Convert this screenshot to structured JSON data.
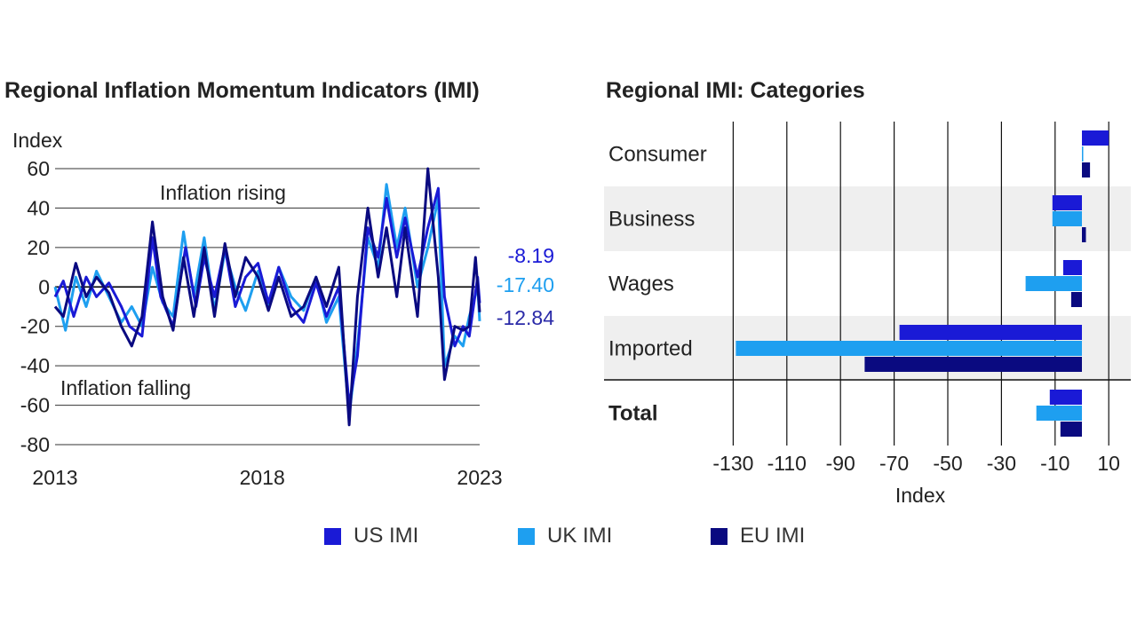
{
  "chart_data": [
    {
      "type": "line",
      "title": "Regional Inflation Momentum Indicators (IMI)",
      "ylabel": "Index",
      "ylim": [
        -80,
        60
      ],
      "yticks": [
        60,
        40,
        20,
        0,
        -20,
        -40,
        -60,
        -80
      ],
      "xticks": [
        "2013",
        "2018",
        "2023"
      ],
      "xrange": [
        2013,
        2023.25
      ],
      "annotations": {
        "rising": "Inflation rising",
        "falling": "Inflation falling"
      },
      "end_labels": [
        {
          "series": "US IMI",
          "text": "-8.19",
          "value": -8.19
        },
        {
          "series": "UK IMI",
          "text": "-17.40",
          "value": -17.4
        },
        {
          "series": "EU IMI",
          "text": "-12.84",
          "value": -12.84
        }
      ],
      "series": [
        {
          "name": "US IMI",
          "color": "#1a1ad6",
          "x": [
            2013.0,
            2013.2,
            2013.45,
            2013.75,
            2014.0,
            2014.3,
            2014.6,
            2014.8,
            2015.1,
            2015.35,
            2015.55,
            2015.85,
            2016.15,
            2016.4,
            2016.6,
            2016.85,
            2017.1,
            2017.35,
            2017.6,
            2017.9,
            2018.15,
            2018.4,
            2018.7,
            2019.0,
            2019.3,
            2019.55,
            2019.85,
            2020.1,
            2020.3,
            2020.55,
            2020.8,
            2021.0,
            2021.25,
            2021.45,
            2021.75,
            2022.0,
            2022.25,
            2022.4,
            2022.65,
            2022.85,
            2023.0,
            2023.2,
            2023.25
          ],
          "values": [
            -5,
            3,
            -15,
            5,
            -5,
            2,
            -10,
            -20,
            -25,
            25,
            -5,
            -20,
            20,
            -10,
            15,
            -5,
            20,
            -10,
            5,
            12,
            -8,
            10,
            -10,
            -18,
            2,
            -15,
            0,
            -60,
            -35,
            30,
            15,
            45,
            15,
            35,
            5,
            30,
            50,
            -5,
            -30,
            -20,
            -25,
            5,
            -8.19
          ]
        },
        {
          "name": "UK IMI",
          "color": "#1e9ff0",
          "x": [
            2013.0,
            2013.25,
            2013.5,
            2013.75,
            2014.0,
            2014.3,
            2014.6,
            2014.85,
            2015.1,
            2015.35,
            2015.6,
            2015.85,
            2016.1,
            2016.35,
            2016.6,
            2016.85,
            2017.1,
            2017.35,
            2017.6,
            2017.9,
            2018.15,
            2018.4,
            2018.7,
            2019.0,
            2019.3,
            2019.55,
            2019.85,
            2020.1,
            2020.3,
            2020.55,
            2020.8,
            2021.0,
            2021.25,
            2021.45,
            2021.75,
            2022.0,
            2022.25,
            2022.4,
            2022.65,
            2022.85,
            2023.0,
            2023.2,
            2023.25
          ],
          "values": [
            0,
            -22,
            5,
            -10,
            8,
            -5,
            -18,
            -10,
            -20,
            10,
            -8,
            -15,
            28,
            -5,
            25,
            -12,
            18,
            0,
            -12,
            8,
            -10,
            10,
            -5,
            -12,
            5,
            -18,
            -5,
            -65,
            -30,
            25,
            10,
            52,
            20,
            40,
            0,
            20,
            45,
            -40,
            -25,
            -30,
            -15,
            0,
            -17.4
          ]
        },
        {
          "name": "EU IMI",
          "color": "#0a0a80",
          "x": [
            2013.0,
            2013.2,
            2013.5,
            2013.75,
            2014.0,
            2014.3,
            2014.6,
            2014.85,
            2015.1,
            2015.35,
            2015.6,
            2015.85,
            2016.1,
            2016.35,
            2016.6,
            2016.85,
            2017.1,
            2017.35,
            2017.6,
            2017.9,
            2018.15,
            2018.4,
            2018.7,
            2019.0,
            2019.3,
            2019.55,
            2019.85,
            2020.1,
            2020.3,
            2020.55,
            2020.8,
            2021.0,
            2021.25,
            2021.45,
            2021.75,
            2022.0,
            2022.25,
            2022.4,
            2022.65,
            2022.85,
            2023.0,
            2023.15,
            2023.25
          ],
          "values": [
            -10,
            -15,
            12,
            -5,
            5,
            -3,
            -20,
            -30,
            -15,
            33,
            -5,
            -22,
            15,
            -15,
            20,
            -15,
            22,
            -5,
            15,
            5,
            -12,
            5,
            -15,
            -10,
            5,
            -10,
            10,
            -70,
            -5,
            40,
            5,
            30,
            -5,
            30,
            -15,
            60,
            5,
            -47,
            -20,
            -22,
            -20,
            15,
            -12.84
          ]
        }
      ]
    },
    {
      "type": "bar",
      "orientation": "horizontal",
      "title": "Regional IMI: Categories",
      "xlabel": "Index",
      "xlim": [
        -130,
        15
      ],
      "xticks": [
        "-130",
        "-110",
        "-90",
        "-70",
        "-50",
        "-30",
        "-10",
        "10"
      ],
      "categories": [
        "Consumer",
        "Business",
        "Wages",
        "Imported",
        "Total"
      ],
      "series": [
        {
          "name": "US IMI",
          "color": "#1a1ad6",
          "values": [
            10,
            -11,
            -7,
            -68,
            -12
          ]
        },
        {
          "name": "UK IMI",
          "color": "#1e9ff0",
          "values": [
            0.5,
            -11,
            -21,
            -129,
            -17
          ]
        },
        {
          "name": "EU IMI",
          "color": "#0a0a80",
          "values": [
            3,
            1.5,
            -4,
            -81,
            -8
          ]
        }
      ]
    }
  ],
  "legend": [
    {
      "label": "US IMI",
      "color": "#1a1ad6"
    },
    {
      "label": "UK IMI",
      "color": "#1e9ff0"
    },
    {
      "label": "EU IMI",
      "color": "#0a0a80"
    }
  ]
}
